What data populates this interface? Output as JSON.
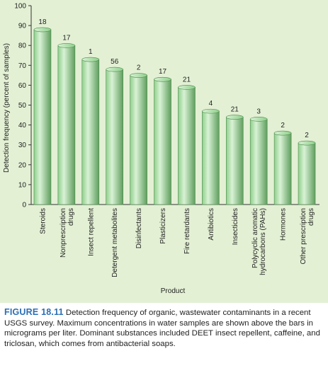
{
  "chart_data": {
    "type": "bar",
    "categories": [
      [
        "Steroids"
      ],
      [
        "Nonprescription",
        "drugs"
      ],
      [
        "Insect repellent"
      ],
      [
        "Detergent metabolites"
      ],
      [
        "Disinfectants"
      ],
      [
        "Plasticizers"
      ],
      [
        "Fire retardants"
      ],
      [
        "Antibiotics"
      ],
      [
        "Insecticides"
      ],
      [
        "Polycyclic aromatic",
        "hydrocarbons (PAHs)"
      ],
      [
        "Hormones"
      ],
      [
        "Other prescription",
        "drugs"
      ]
    ],
    "values": [
      89,
      81,
      74,
      69,
      66,
      64,
      60,
      48,
      45,
      44,
      37,
      32
    ],
    "data_labels": [
      "18",
      "17",
      "1",
      "56",
      "2",
      "17",
      "21",
      "4",
      "21",
      "3",
      "2",
      "2"
    ],
    "xlabel": "Product",
    "ylabel": "Detection frequency (percent of samples)",
    "ylim": [
      0,
      100
    ],
    "yticks": [
      "0",
      "10",
      "20",
      "30",
      "40",
      "50",
      "60",
      "70",
      "80",
      "90",
      "100"
    ]
  },
  "caption": {
    "figure_number": "FIGURE 18.11",
    "text": " Detection frequency of organic, wastewater contaminants in a recent USGS survey. Maximum concentrations in water samples are shown above the bars in micrograms per liter. Dominant substances included DEET insect repellent, caffeine, and triclosan, which comes from antibacterial soaps."
  },
  "colors": {
    "panel_bg": "#e3f0d4",
    "bar_mid": "#8fcf8c",
    "bar_light": "#d9f2d5",
    "bar_dark": "#5f9e5e",
    "caption_accent": "#2a6fb6"
  }
}
